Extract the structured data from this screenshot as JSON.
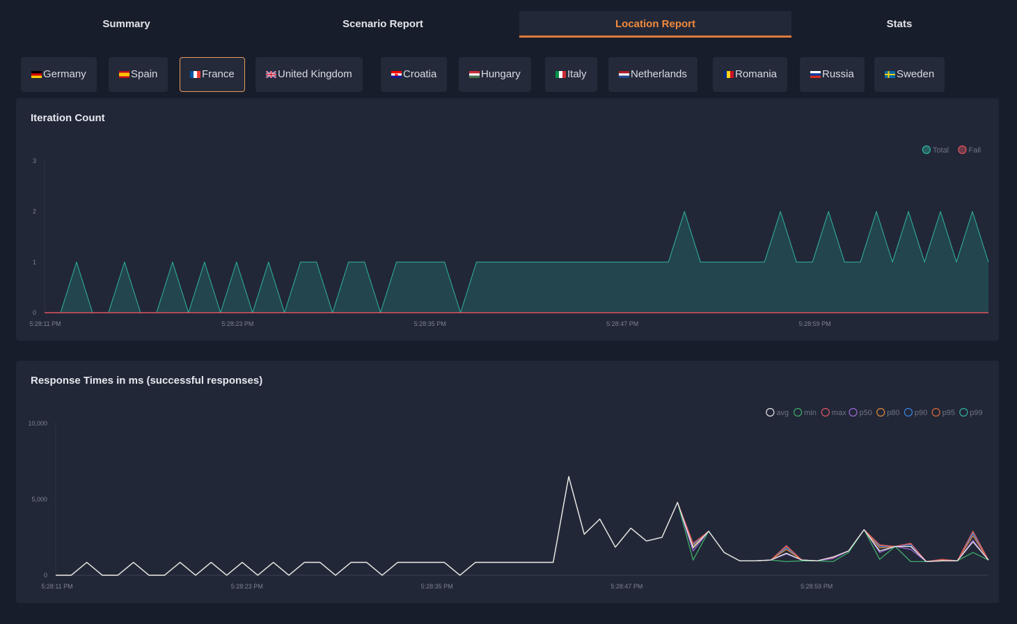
{
  "tabs": [
    {
      "label": "Summary",
      "active": false
    },
    {
      "label": "Scenario Report",
      "active": false
    },
    {
      "label": "Location Report",
      "active": true
    },
    {
      "label": "Stats",
      "active": false
    }
  ],
  "locations": [
    {
      "label": "Germany",
      "flag": "de",
      "active": false
    },
    {
      "label": "Spain",
      "flag": "es",
      "active": false
    },
    {
      "label": "France",
      "flag": "fr",
      "active": true
    },
    {
      "label": "United Kingdom",
      "flag": "gb",
      "active": false
    },
    {
      "label": "Croatia",
      "flag": "hr",
      "active": false
    },
    {
      "label": "Hungary",
      "flag": "hu",
      "active": false
    },
    {
      "label": "Italy",
      "flag": "it",
      "active": false
    },
    {
      "label": "Netherlands",
      "flag": "nl",
      "active": false
    },
    {
      "label": "Romania",
      "flag": "ro",
      "active": false
    },
    {
      "label": "Russia",
      "flag": "ru",
      "active": false
    },
    {
      "label": "Sweden",
      "flag": "se",
      "active": false
    }
  ],
  "colors": {
    "accent": "#f08a3c",
    "fail": "#e0555f",
    "total": "#2fb5a0",
    "avg": "#e8e8e8",
    "min": "#3fae6a",
    "max": "#e0555f",
    "p50": "#9b6ad6",
    "p80": "#e08a3a",
    "p90": "#3a86e0",
    "p95": "#d96a3a",
    "p99": "#2fb5a0"
  },
  "chart_data": [
    {
      "type": "area",
      "title": "Iteration Count",
      "ylim": [
        0,
        3
      ],
      "yticks": [
        "0",
        "1",
        "2",
        "3"
      ],
      "xticks": [
        "5:28:11 PM",
        "5:28:23 PM",
        "5:28:35 PM",
        "5:28:47 PM",
        "5:28:59 PM"
      ],
      "legend_position": "top-right",
      "series": [
        {
          "name": "Fail",
          "values": [
            0,
            0,
            0,
            0,
            0,
            0,
            0,
            0,
            0,
            0,
            0,
            0,
            0,
            0,
            0,
            0,
            0,
            0,
            0,
            0,
            0,
            0,
            0,
            0,
            0,
            0,
            0,
            0,
            0,
            0,
            0,
            0,
            0,
            0,
            0,
            0,
            0,
            0,
            0,
            0,
            0,
            0,
            0,
            0,
            0,
            0,
            0,
            0,
            0,
            0,
            0,
            0,
            0,
            0,
            0,
            0,
            0,
            0,
            0,
            0
          ]
        },
        {
          "name": "Total",
          "values": [
            0,
            0,
            1,
            0,
            0,
            1,
            0,
            0,
            1,
            0,
            1,
            0,
            1,
            0,
            1,
            0,
            1,
            1,
            0,
            1,
            1,
            0,
            1,
            1,
            1,
            1,
            0,
            1,
            1,
            1,
            1,
            1,
            1,
            1,
            1,
            1,
            1,
            1,
            1,
            1,
            2,
            1,
            1,
            1,
            1,
            1,
            2,
            1,
            1,
            2,
            1,
            1,
            2,
            1,
            2,
            1,
            2,
            1,
            2,
            1
          ]
        }
      ]
    },
    {
      "type": "line",
      "title": "Response Times in ms (successful responses)",
      "ylim": [
        0,
        10000
      ],
      "yticks": [
        "0",
        "5,000",
        "10,000"
      ],
      "xticks": [
        "5:28:11 PM",
        "5:28:23 PM",
        "5:28:35 PM",
        "5:28:47 PM",
        "5:28:59 PM"
      ],
      "legend_position": "top-right",
      "series": [
        {
          "name": "avg",
          "values": [
            0,
            0,
            850,
            0,
            0,
            850,
            0,
            0,
            850,
            0,
            850,
            0,
            850,
            0,
            850,
            0,
            850,
            850,
            0,
            850,
            850,
            0,
            850,
            850,
            850,
            850,
            0,
            850,
            850,
            850,
            850,
            850,
            850,
            6500,
            2700,
            3700,
            1850,
            3100,
            2250,
            2500,
            4800,
            1800,
            2900,
            1500,
            950,
            950,
            1000,
            1450,
            1000,
            950,
            1200,
            1600,
            3000,
            1600,
            1900,
            1900,
            900,
            950,
            950,
            2200,
            1000
          ]
        },
        {
          "name": "min",
          "values": [
            0,
            0,
            850,
            0,
            0,
            850,
            0,
            0,
            850,
            0,
            850,
            0,
            850,
            0,
            850,
            0,
            850,
            850,
            0,
            850,
            850,
            0,
            850,
            850,
            850,
            850,
            0,
            850,
            850,
            850,
            850,
            850,
            850,
            6500,
            2700,
            3700,
            1850,
            3100,
            2250,
            2500,
            4800,
            1000,
            2900,
            1500,
            950,
            950,
            1000,
            900,
            950,
            950,
            900,
            1500,
            3000,
            1050,
            1900,
            900,
            900,
            950,
            950,
            1500,
            1000
          ]
        },
        {
          "name": "max",
          "values": [
            0,
            0,
            850,
            0,
            0,
            850,
            0,
            0,
            850,
            0,
            850,
            0,
            850,
            0,
            850,
            0,
            850,
            850,
            0,
            850,
            850,
            0,
            850,
            850,
            850,
            850,
            0,
            850,
            850,
            850,
            850,
            850,
            850,
            6500,
            2700,
            3700,
            1850,
            3100,
            2250,
            2500,
            4800,
            2100,
            2900,
            1500,
            950,
            950,
            1000,
            1950,
            1000,
            950,
            1200,
            1600,
            3000,
            2000,
            1900,
            2100,
            900,
            1050,
            950,
            2900,
            1000
          ]
        },
        {
          "name": "p50",
          "values": [
            0,
            0,
            850,
            0,
            0,
            850,
            0,
            0,
            850,
            0,
            850,
            0,
            850,
            0,
            850,
            0,
            850,
            850,
            0,
            850,
            850,
            0,
            850,
            850,
            850,
            850,
            0,
            850,
            850,
            850,
            850,
            850,
            850,
            6500,
            2700,
            3700,
            1850,
            3100,
            2250,
            2500,
            4800,
            1600,
            2900,
            1500,
            950,
            950,
            1000,
            1400,
            1000,
            950,
            1100,
            1600,
            3000,
            1500,
            1900,
            1700,
            900,
            950,
            950,
            2300,
            1000
          ]
        },
        {
          "name": "p80",
          "values": [
            0,
            0,
            850,
            0,
            0,
            850,
            0,
            0,
            850,
            0,
            850,
            0,
            850,
            0,
            850,
            0,
            850,
            850,
            0,
            850,
            850,
            0,
            850,
            850,
            850,
            850,
            0,
            850,
            850,
            850,
            850,
            850,
            850,
            6500,
            2700,
            3700,
            1850,
            3100,
            2250,
            2500,
            4800,
            1900,
            2900,
            1500,
            950,
            950,
            1000,
            1700,
            1000,
            950,
            1150,
            1600,
            3000,
            1800,
            1900,
            1900,
            900,
            1000,
            950,
            2600,
            1000
          ]
        },
        {
          "name": "p90",
          "values": [
            0,
            0,
            850,
            0,
            0,
            850,
            0,
            0,
            850,
            0,
            850,
            0,
            850,
            0,
            850,
            0,
            850,
            850,
            0,
            850,
            850,
            0,
            850,
            850,
            850,
            850,
            0,
            850,
            850,
            850,
            850,
            850,
            850,
            6500,
            2700,
            3700,
            1850,
            3100,
            2250,
            2500,
            4800,
            2000,
            2900,
            1500,
            950,
            950,
            1000,
            1800,
            1000,
            950,
            1180,
            1600,
            3000,
            1900,
            1900,
            2000,
            900,
            1020,
            950,
            2750,
            1000
          ]
        },
        {
          "name": "p95",
          "values": [
            0,
            0,
            850,
            0,
            0,
            850,
            0,
            0,
            850,
            0,
            850,
            0,
            850,
            0,
            850,
            0,
            850,
            850,
            0,
            850,
            850,
            0,
            850,
            850,
            850,
            850,
            0,
            850,
            850,
            850,
            850,
            850,
            850,
            6500,
            2700,
            3700,
            1850,
            3100,
            2250,
            2500,
            4800,
            2050,
            2900,
            1500,
            950,
            950,
            1000,
            1900,
            1000,
            950,
            1190,
            1600,
            3000,
            1950,
            1900,
            2050,
            900,
            1040,
            950,
            2850,
            1000
          ]
        },
        {
          "name": "p99",
          "values": [
            0,
            0,
            850,
            0,
            0,
            850,
            0,
            0,
            850,
            0,
            850,
            0,
            850,
            0,
            850,
            0,
            850,
            850,
            0,
            850,
            850,
            0,
            850,
            850,
            850,
            850,
            0,
            850,
            850,
            850,
            850,
            850,
            850,
            6500,
            2700,
            3700,
            1850,
            3100,
            2250,
            2500,
            4800,
            2100,
            2900,
            1500,
            950,
            950,
            1000,
            1950,
            1000,
            950,
            1200,
            1600,
            3000,
            2000,
            1900,
            2100,
            900,
            1050,
            950,
            2900,
            1000
          ]
        }
      ]
    }
  ]
}
